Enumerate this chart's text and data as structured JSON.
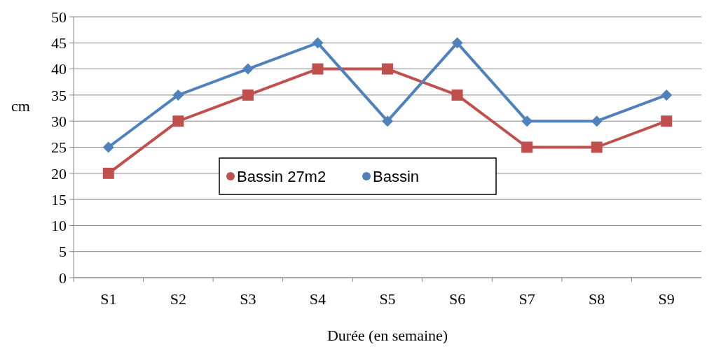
{
  "chart_data": {
    "type": "line",
    "ylabel": "cm",
    "xlabel": "Durée (en semaine)",
    "categories": [
      "S1",
      "S2",
      "S3",
      "S4",
      "S5",
      "S6",
      "S7",
      "S8",
      "S9"
    ],
    "series": [
      {
        "name": "Bassin 27m2",
        "color": "#c0504d",
        "marker": "square",
        "values": [
          20,
          30,
          35,
          40,
          40,
          35,
          25,
          25,
          30
        ]
      },
      {
        "name": "Bassin",
        "color": "#4f81bd",
        "marker": "diamond",
        "values": [
          25,
          35,
          40,
          45,
          30,
          45,
          30,
          30,
          35
        ]
      }
    ],
    "ylim": [
      0,
      50
    ],
    "yticks": [
      0,
      5,
      10,
      15,
      20,
      25,
      30,
      35,
      40,
      45,
      50
    ],
    "grid": "y",
    "legend": "center"
  }
}
